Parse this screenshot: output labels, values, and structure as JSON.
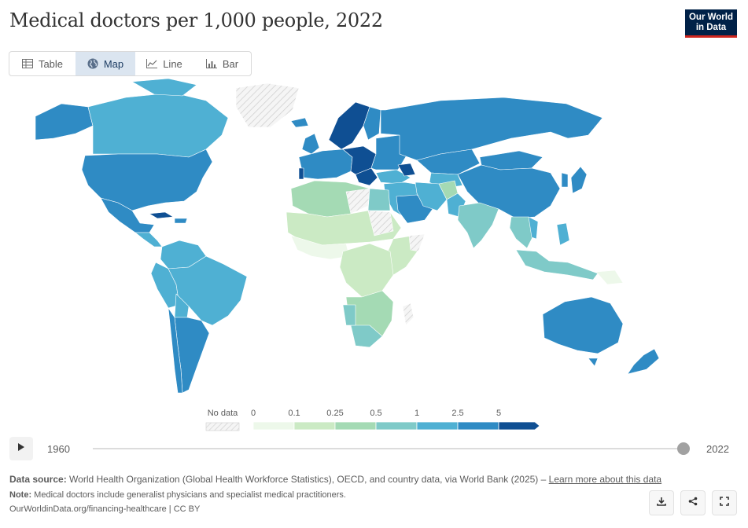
{
  "header": {
    "title": "Medical doctors per 1,000 people, 2022",
    "logo_line1": "Our World",
    "logo_line2": "in Data"
  },
  "tabs": [
    {
      "label": "Table",
      "icon": "table-icon",
      "active": false
    },
    {
      "label": "Map",
      "icon": "globe-icon",
      "active": true
    },
    {
      "label": "Line",
      "icon": "line-chart-icon",
      "active": false
    },
    {
      "label": "Bar",
      "icon": "bar-chart-icon",
      "active": false
    }
  ],
  "legend": {
    "no_data_label": "No data",
    "bin_labels": [
      "0",
      "0.1",
      "0.25",
      "0.5",
      "1",
      "2.5",
      "5"
    ],
    "bin_colors": [
      "#edf8ea",
      "#cbeac4",
      "#a4dab4",
      "#7fcac8",
      "#4fb0d3",
      "#2f8bc4",
      "#0f4f93"
    ]
  },
  "timeline": {
    "start_year": "1960",
    "end_year": "2022",
    "selected_year": "2022"
  },
  "footer": {
    "source_label": "Data source:",
    "source_text": "World Health Organization (Global Health Workforce Statistics), OECD, and country data, via World Bank (2025) –",
    "source_link": "Learn more about this data",
    "note_label": "Note:",
    "note_text": "Medical doctors include generalist physicians and specialist medical practitioners.",
    "url": "OurWorldinData.org/financing-healthcare | CC BY"
  },
  "actions": [
    {
      "name": "download-button",
      "icon": "download-icon"
    },
    {
      "name": "share-button",
      "icon": "share-icon"
    },
    {
      "name": "fullscreen-button",
      "icon": "fullscreen-icon"
    }
  ]
}
